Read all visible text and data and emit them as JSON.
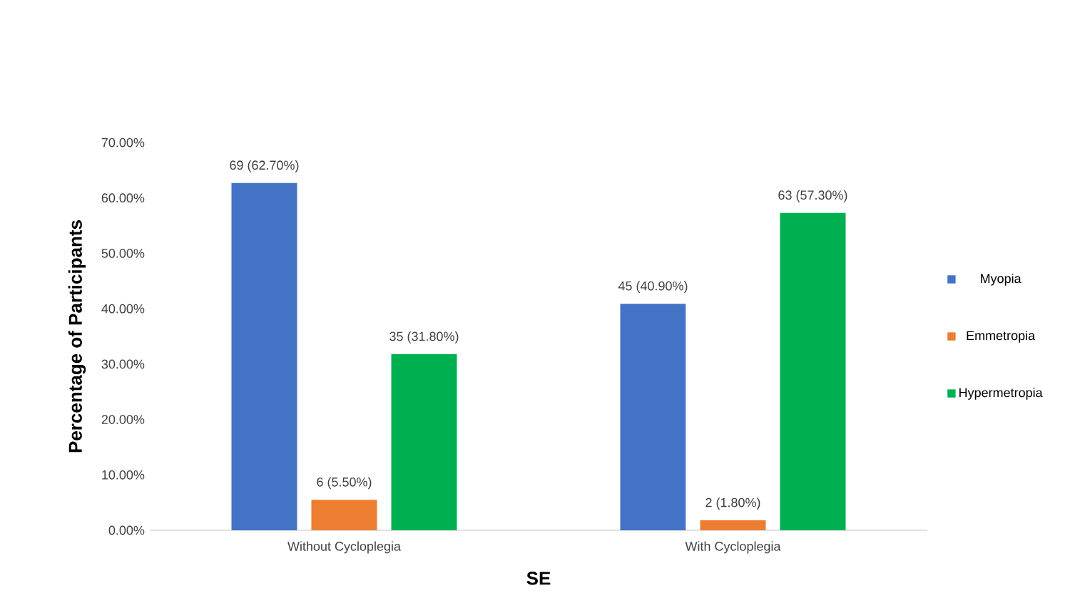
{
  "chart_data": {
    "type": "bar",
    "xlabel": "SE",
    "ylabel": "Percentage of Participants",
    "categories": [
      "Without Cycloplegia",
      "With Cycloplegia"
    ],
    "series": [
      {
        "name": "Myopia",
        "color": "#4472c4",
        "values": [
          62.7,
          40.9
        ],
        "value_labels": [
          "69 (62.70%)",
          "45 (40.90%)"
        ]
      },
      {
        "name": "Emmetropia",
        "color": "#ed7d31",
        "values": [
          5.5,
          1.8
        ],
        "value_labels": [
          "6 (5.50%)",
          "2 (1.80%)"
        ]
      },
      {
        "name": "Hypermetropia",
        "color": "#00b050",
        "values": [
          31.8,
          57.3
        ],
        "value_labels": [
          "35 (31.80%)",
          "63 (57.30%)"
        ]
      }
    ],
    "ylim": [
      0,
      70
    ],
    "yticks": [
      {
        "value": 0,
        "label": "0.00%"
      },
      {
        "value": 10,
        "label": "10.00%"
      },
      {
        "value": 20,
        "label": "20.00%"
      },
      {
        "value": 30,
        "label": "30.00%"
      },
      {
        "value": 40,
        "label": "40.00%"
      },
      {
        "value": 50,
        "label": "50.00%"
      },
      {
        "value": 60,
        "label": "60.00%"
      },
      {
        "value": 70,
        "label": "70.00%"
      }
    ],
    "grid": false,
    "legend": "right"
  }
}
